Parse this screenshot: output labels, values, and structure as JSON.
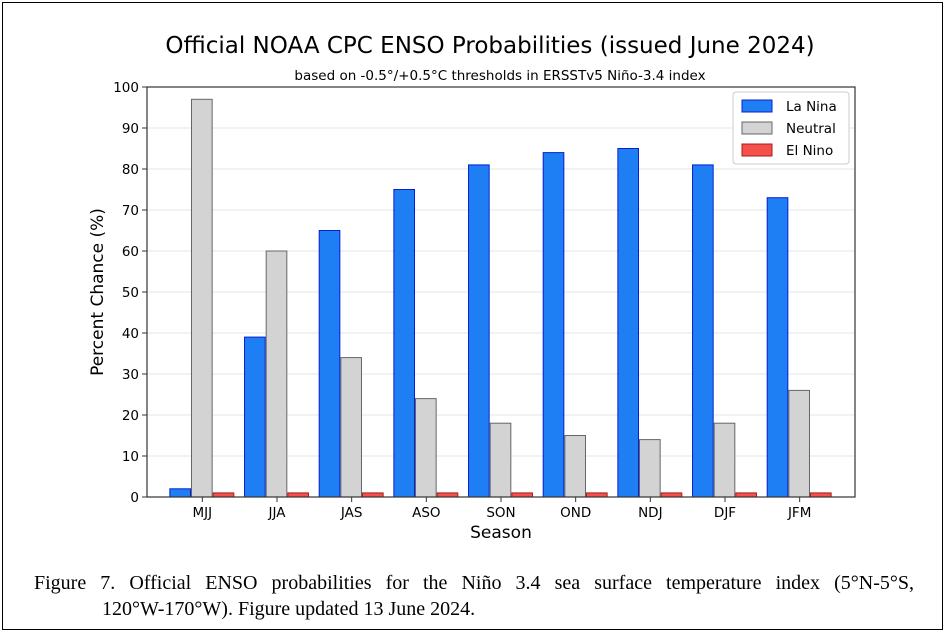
{
  "chart_data": {
    "type": "bar",
    "title": "Official NOAA CPC ENSO Probabilities (issued June 2024)",
    "subtitle": "based on -0.5°/+0.5°C thresholds in ERSSTv5 Niño-3.4 index",
    "xlabel": "Season",
    "ylabel": "Percent Chance (%)",
    "ylim": [
      0,
      100
    ],
    "yticks": [
      "0",
      "10",
      "20",
      "30",
      "40",
      "50",
      "60",
      "70",
      "80",
      "90",
      "100"
    ],
    "grid": true,
    "legend_position": "top-right",
    "categories": [
      "MJJ",
      "JJA",
      "JAS",
      "ASO",
      "SON",
      "OND",
      "NDJ",
      "DJF",
      "JFM"
    ],
    "series": [
      {
        "name": "La Nina",
        "color": "#1e7ff5",
        "values": [
          2,
          39,
          65,
          75,
          81,
          84,
          85,
          81,
          73
        ]
      },
      {
        "name": "Neutral",
        "color": "#d3d3d3",
        "values": [
          97,
          60,
          34,
          24,
          18,
          15,
          14,
          18,
          26
        ]
      },
      {
        "name": "El Nino",
        "color": "#f5504a",
        "values": [
          1,
          1,
          1,
          1,
          1,
          1,
          1,
          1,
          1
        ]
      }
    ]
  },
  "caption": {
    "line1": "Figure 7. Official ENSO probabilities for the Niño 3.4 sea surface temperature index (5°N-5°S,",
    "line2": "120°W-170°W). Figure updated 13 June 2024."
  }
}
